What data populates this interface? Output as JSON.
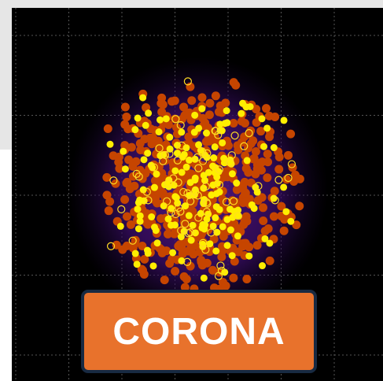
{
  "label": "CORONA"
}
